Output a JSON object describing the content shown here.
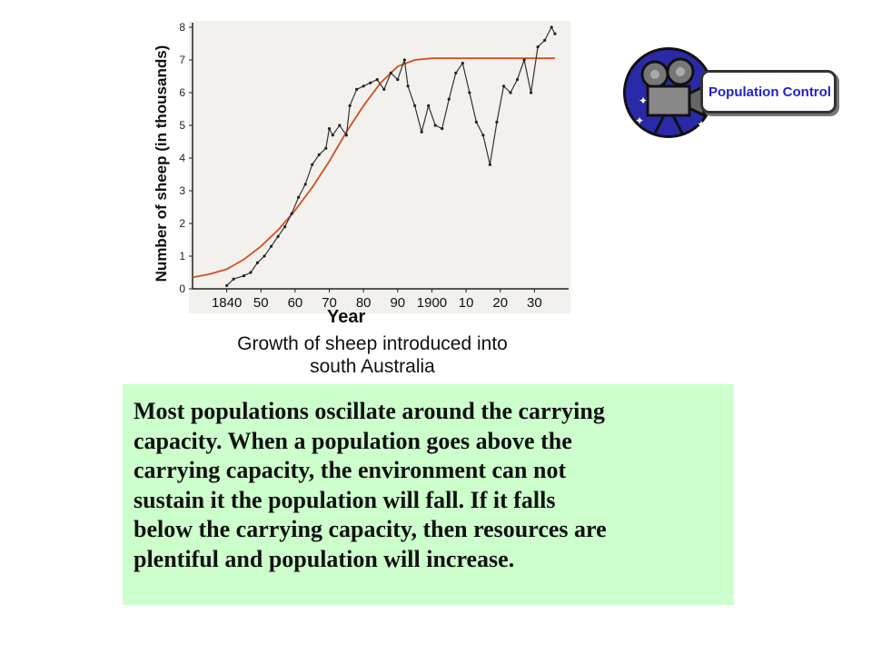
{
  "chart_data": {
    "type": "line",
    "ylabel": "Number of sheep (in thousands)",
    "xlabel": "Year",
    "title": "Growth of sheep introduced into south Australia",
    "title_lines": [
      "Growth of sheep introduced into",
      "south Australia"
    ],
    "x_tick_labels": [
      "1840",
      "50",
      "60",
      "70",
      "80",
      "90",
      "1900",
      "10",
      "20",
      "30"
    ],
    "x_ticks": [
      1840,
      1850,
      1860,
      1870,
      1880,
      1890,
      1900,
      1910,
      1920,
      1930
    ],
    "y_ticks": [
      0,
      1,
      2,
      3,
      4,
      5,
      6,
      7,
      8
    ],
    "xlim": [
      1830,
      1940
    ],
    "ylim": [
      0,
      8
    ],
    "grid": false,
    "series": [
      {
        "name": "",
        "color": "#d2501e",
        "points": [
          [
            1830,
            0.35
          ],
          [
            1835,
            0.45
          ],
          [
            1840,
            0.6
          ],
          [
            1845,
            0.9
          ],
          [
            1850,
            1.3
          ],
          [
            1855,
            1.8
          ],
          [
            1860,
            2.4
          ],
          [
            1865,
            3.1
          ],
          [
            1870,
            3.9
          ],
          [
            1875,
            4.8
          ],
          [
            1880,
            5.6
          ],
          [
            1885,
            6.3
          ],
          [
            1890,
            6.8
          ],
          [
            1895,
            7.0
          ],
          [
            1900,
            7.05
          ],
          [
            1910,
            7.05
          ],
          [
            1920,
            7.05
          ],
          [
            1930,
            7.05
          ],
          [
            1936,
            7.05
          ]
        ]
      },
      {
        "name": "",
        "color": "#333333",
        "points": [
          [
            1840,
            0.1
          ],
          [
            1842,
            0.3
          ],
          [
            1845,
            0.4
          ],
          [
            1847,
            0.5
          ],
          [
            1849,
            0.8
          ],
          [
            1851,
            1.0
          ],
          [
            1853,
            1.3
          ],
          [
            1855,
            1.6
          ],
          [
            1857,
            1.9
          ],
          [
            1859,
            2.3
          ],
          [
            1861,
            2.8
          ],
          [
            1863,
            3.2
          ],
          [
            1865,
            3.8
          ],
          [
            1867,
            4.1
          ],
          [
            1869,
            4.3
          ],
          [
            1870,
            4.9
          ],
          [
            1871,
            4.7
          ],
          [
            1873,
            5.0
          ],
          [
            1875,
            4.7
          ],
          [
            1876,
            5.6
          ],
          [
            1878,
            6.1
          ],
          [
            1880,
            6.2
          ],
          [
            1882,
            6.3
          ],
          [
            1884,
            6.4
          ],
          [
            1886,
            6.1
          ],
          [
            1888,
            6.6
          ],
          [
            1890,
            6.4
          ],
          [
            1892,
            7.0
          ],
          [
            1893,
            6.2
          ],
          [
            1895,
            5.6
          ],
          [
            1897,
            4.8
          ],
          [
            1899,
            5.6
          ],
          [
            1901,
            5.0
          ],
          [
            1903,
            4.9
          ],
          [
            1905,
            5.8
          ],
          [
            1907,
            6.6
          ],
          [
            1909,
            6.9
          ],
          [
            1911,
            6.0
          ],
          [
            1913,
            5.1
          ],
          [
            1915,
            4.7
          ],
          [
            1917,
            3.8
          ],
          [
            1919,
            5.1
          ],
          [
            1921,
            6.2
          ],
          [
            1923,
            6.0
          ],
          [
            1925,
            6.4
          ],
          [
            1927,
            7.0
          ],
          [
            1929,
            6.0
          ],
          [
            1931,
            7.4
          ],
          [
            1933,
            7.6
          ],
          [
            1935,
            8.0
          ],
          [
            1936,
            7.8
          ]
        ]
      }
    ]
  },
  "badge": {
    "label": "Population Control",
    "icon": "movie-camera-icon"
  },
  "body_text": {
    "lines": [
      "Most populations oscillate around the carrying",
      "capacity.  When a population goes above the",
      "carrying capacity, the environment can not",
      "sustain it the population will fall.  If it falls",
      "below the carrying capacity, then resources are",
      "plentiful and population will increase."
    ]
  }
}
